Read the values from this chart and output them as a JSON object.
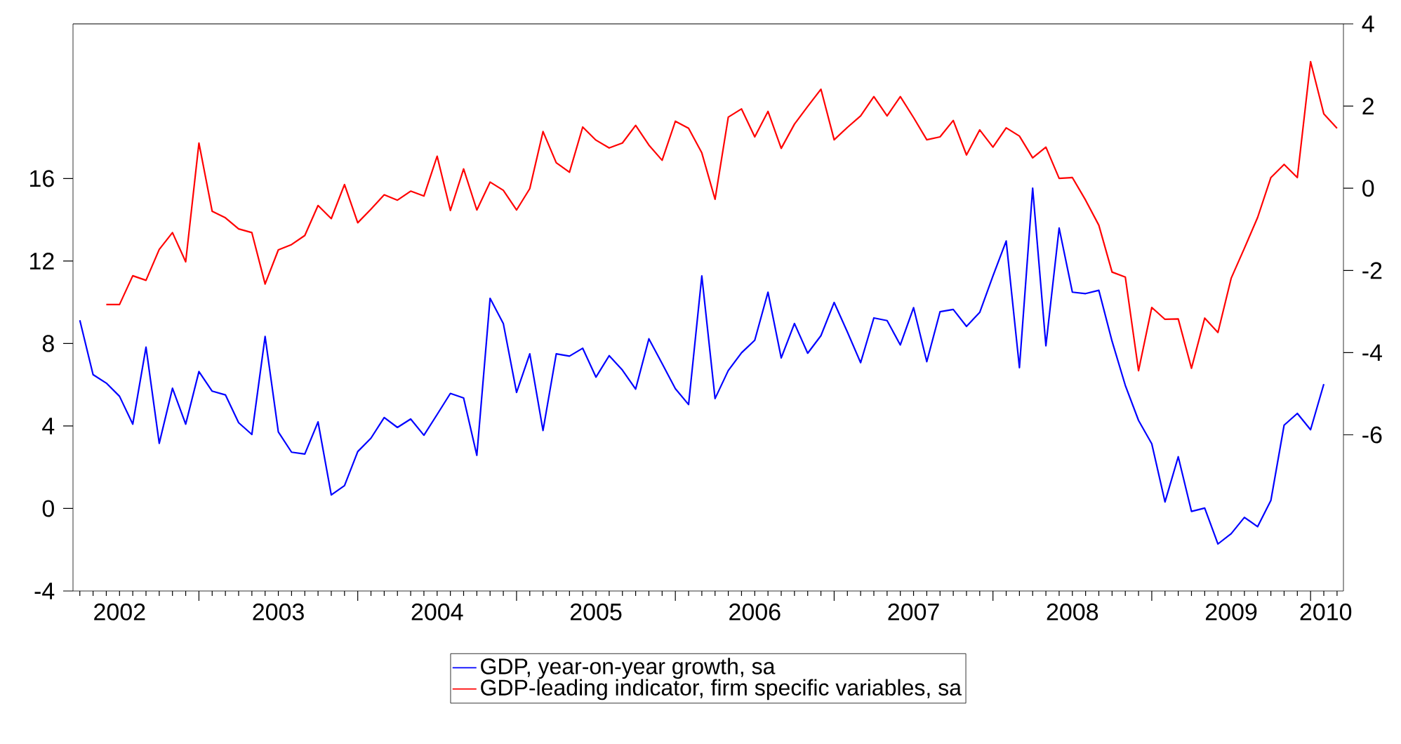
{
  "chart_data": {
    "type": "line",
    "legend": "bottom",
    "marker": "none",
    "line_style": "solid",
    "grid": false,
    "xlim": [
      "2002-03-16",
      "2010-03-16"
    ],
    "xticks": [
      {
        "value": "2002-07-01",
        "label": "2002"
      },
      {
        "value": "2003-01-01",
        "label": null
      },
      {
        "value": "2003-07-01",
        "label": "2003"
      },
      {
        "value": "2004-01-01",
        "label": null
      },
      {
        "value": "2004-07-01",
        "label": "2004"
      },
      {
        "value": "2005-01-01",
        "label": null
      },
      {
        "value": "2005-07-01",
        "label": "2005"
      },
      {
        "value": "2006-01-01",
        "label": null
      },
      {
        "value": "2006-07-01",
        "label": "2006"
      },
      {
        "value": "2007-01-01",
        "label": null
      },
      {
        "value": "2007-07-01",
        "label": "2007"
      },
      {
        "value": "2008-01-01",
        "label": null
      },
      {
        "value": "2008-07-01",
        "label": "2008"
      },
      {
        "value": "2009-01-01",
        "label": null
      },
      {
        "value": "2009-07-01",
        "label": "2009"
      },
      {
        "value": "2010-01-01",
        "label": null
      },
      {
        "value": "2010-02-05",
        "label": "2010"
      }
    ],
    "ylim": [
      -4,
      23.5
    ],
    "yticks": [
      -4,
      0,
      4,
      8,
      12,
      16
    ],
    "y2lim": [
      -9.8,
      4
    ],
    "y2ticks": [
      -6,
      -4,
      -2,
      0,
      2,
      4
    ],
    "series": [
      {
        "name": "GDP, year-on-year growth, sa",
        "color": "#0000ff",
        "axis": "y",
        "x": [
          "2002-04",
          "2002-05",
          "2002-06",
          "2002-07",
          "2002-08",
          "2002-09",
          "2002-10",
          "2002-11",
          "2002-12",
          "2003-01",
          "2003-02",
          "2003-03",
          "2003-04",
          "2003-05",
          "2003-06",
          "2003-07",
          "2003-08",
          "2003-09",
          "2003-10",
          "2003-11",
          "2003-12",
          "2004-01",
          "2004-02",
          "2004-03",
          "2004-04",
          "2004-05",
          "2004-06",
          "2004-07",
          "2004-08",
          "2004-09",
          "2004-10",
          "2004-11",
          "2004-12",
          "2005-01",
          "2005-02",
          "2005-03",
          "2005-04",
          "2005-05",
          "2005-06",
          "2005-07",
          "2005-08",
          "2005-09",
          "2005-10",
          "2005-11",
          "2005-12",
          "2006-01",
          "2006-02",
          "2006-03",
          "2006-04",
          "2006-05",
          "2006-06",
          "2006-07",
          "2006-08",
          "2006-09",
          "2006-10",
          "2006-11",
          "2006-12",
          "2007-01",
          "2007-02",
          "2007-03",
          "2007-04",
          "2007-05",
          "2007-06",
          "2007-07",
          "2007-08",
          "2007-09",
          "2007-10",
          "2007-11",
          "2007-12",
          "2008-01",
          "2008-02",
          "2008-03",
          "2008-04",
          "2008-05",
          "2008-06",
          "2008-07",
          "2008-08",
          "2008-09",
          "2008-10",
          "2008-11",
          "2008-12",
          "2009-01",
          "2009-02",
          "2009-03",
          "2009-04",
          "2009-05",
          "2009-06",
          "2009-07",
          "2009-08",
          "2009-09",
          "2009-10",
          "2009-11",
          "2009-12",
          "2010-01",
          "2010-02"
        ],
        "values": [
          9.13,
          6.49,
          6.08,
          5.44,
          4.09,
          7.82,
          3.16,
          5.83,
          4.09,
          6.64,
          5.69,
          5.51,
          4.16,
          3.59,
          8.34,
          3.71,
          2.73,
          2.64,
          4.2,
          0.66,
          1.11,
          2.76,
          3.41,
          4.41,
          3.93,
          4.34,
          3.55,
          4.56,
          5.58,
          5.36,
          2.58,
          10.19,
          8.97,
          5.63,
          7.5,
          3.78,
          7.5,
          7.39,
          7.77,
          6.37,
          7.41,
          6.71,
          5.79,
          8.23,
          7.03,
          5.81,
          5.04,
          11.28,
          5.33,
          6.69,
          7.55,
          8.16,
          10.49,
          7.3,
          8.97,
          7.53,
          8.38,
          9.99,
          8.56,
          7.07,
          9.24,
          9.11,
          7.93,
          9.74,
          7.12,
          9.54,
          9.65,
          8.83,
          9.51,
          11.28,
          12.97,
          6.83,
          15.53,
          7.89,
          13.6,
          10.49,
          10.42,
          10.58,
          8.11,
          5.97,
          4.27,
          3.14,
          0.32,
          2.51,
          -0.14,
          0.02,
          -1.72,
          -1.22,
          -0.43,
          -0.88,
          0.39,
          4.04,
          4.61,
          3.82,
          6.03
        ]
      },
      {
        "name": "GDP-leading indicator, firm specific variables, sa",
        "color": "#ff0000",
        "axis": "y2",
        "x": [
          "2002-06",
          "2002-07",
          "2002-08",
          "2002-09",
          "2002-10",
          "2002-11",
          "2002-12",
          "2003-01",
          "2003-02",
          "2003-03",
          "2003-04",
          "2003-05",
          "2003-06",
          "2003-07",
          "2003-08",
          "2003-09",
          "2003-10",
          "2003-11",
          "2003-12",
          "2004-01",
          "2004-02",
          "2004-03",
          "2004-04",
          "2004-05",
          "2004-06",
          "2004-07",
          "2004-08",
          "2004-09",
          "2004-10",
          "2004-11",
          "2004-12",
          "2005-01",
          "2005-02",
          "2005-03",
          "2005-04",
          "2005-05",
          "2005-06",
          "2005-07",
          "2005-08",
          "2005-09",
          "2005-10",
          "2005-11",
          "2005-12",
          "2006-01",
          "2006-02",
          "2006-03",
          "2006-04",
          "2006-05",
          "2006-06",
          "2006-07",
          "2006-08",
          "2006-09",
          "2006-10",
          "2006-11",
          "2006-12",
          "2007-01",
          "2007-02",
          "2007-03",
          "2007-04",
          "2007-05",
          "2007-06",
          "2007-07",
          "2007-08",
          "2007-09",
          "2007-10",
          "2007-11",
          "2007-12",
          "2008-01",
          "2008-02",
          "2008-03",
          "2008-04",
          "2008-05",
          "2008-06",
          "2008-07",
          "2008-08",
          "2008-09",
          "2008-10",
          "2008-11",
          "2008-12",
          "2009-01",
          "2009-02",
          "2009-03",
          "2009-04",
          "2009-05",
          "2009-06",
          "2009-07",
          "2009-08",
          "2009-09",
          "2009-10",
          "2009-11",
          "2009-12",
          "2010-01",
          "2010-02",
          "2010-03"
        ],
        "values": [
          -2.83,
          -2.83,
          -2.13,
          -2.24,
          -1.49,
          -1.08,
          -1.79,
          1.1,
          -0.56,
          -0.72,
          -0.99,
          -1.08,
          -2.33,
          -1.5,
          -1.37,
          -1.15,
          -0.42,
          -0.74,
          0.09,
          -0.84,
          -0.51,
          -0.16,
          -0.29,
          -0.07,
          -0.19,
          0.78,
          -0.54,
          0.47,
          -0.53,
          0.15,
          -0.05,
          -0.53,
          -0.01,
          1.38,
          0.62,
          0.39,
          1.49,
          1.17,
          0.98,
          1.1,
          1.53,
          1.05,
          0.68,
          1.63,
          1.46,
          0.86,
          -0.27,
          1.73,
          1.93,
          1.25,
          1.87,
          0.97,
          1.56,
          1.99,
          2.41,
          1.18,
          1.48,
          1.76,
          2.23,
          1.76,
          2.23,
          1.72,
          1.18,
          1.25,
          1.65,
          0.81,
          1.42,
          1.0,
          1.47,
          1.27,
          0.74,
          1.0,
          0.24,
          0.26,
          -0.29,
          -0.9,
          -2.04,
          -2.16,
          -4.44,
          -2.9,
          -3.19,
          -3.18,
          -4.38,
          -3.16,
          -3.51,
          -2.19,
          -1.46,
          -0.71,
          0.26,
          0.58,
          0.26,
          3.08,
          1.81,
          1.46
        ]
      }
    ]
  }
}
